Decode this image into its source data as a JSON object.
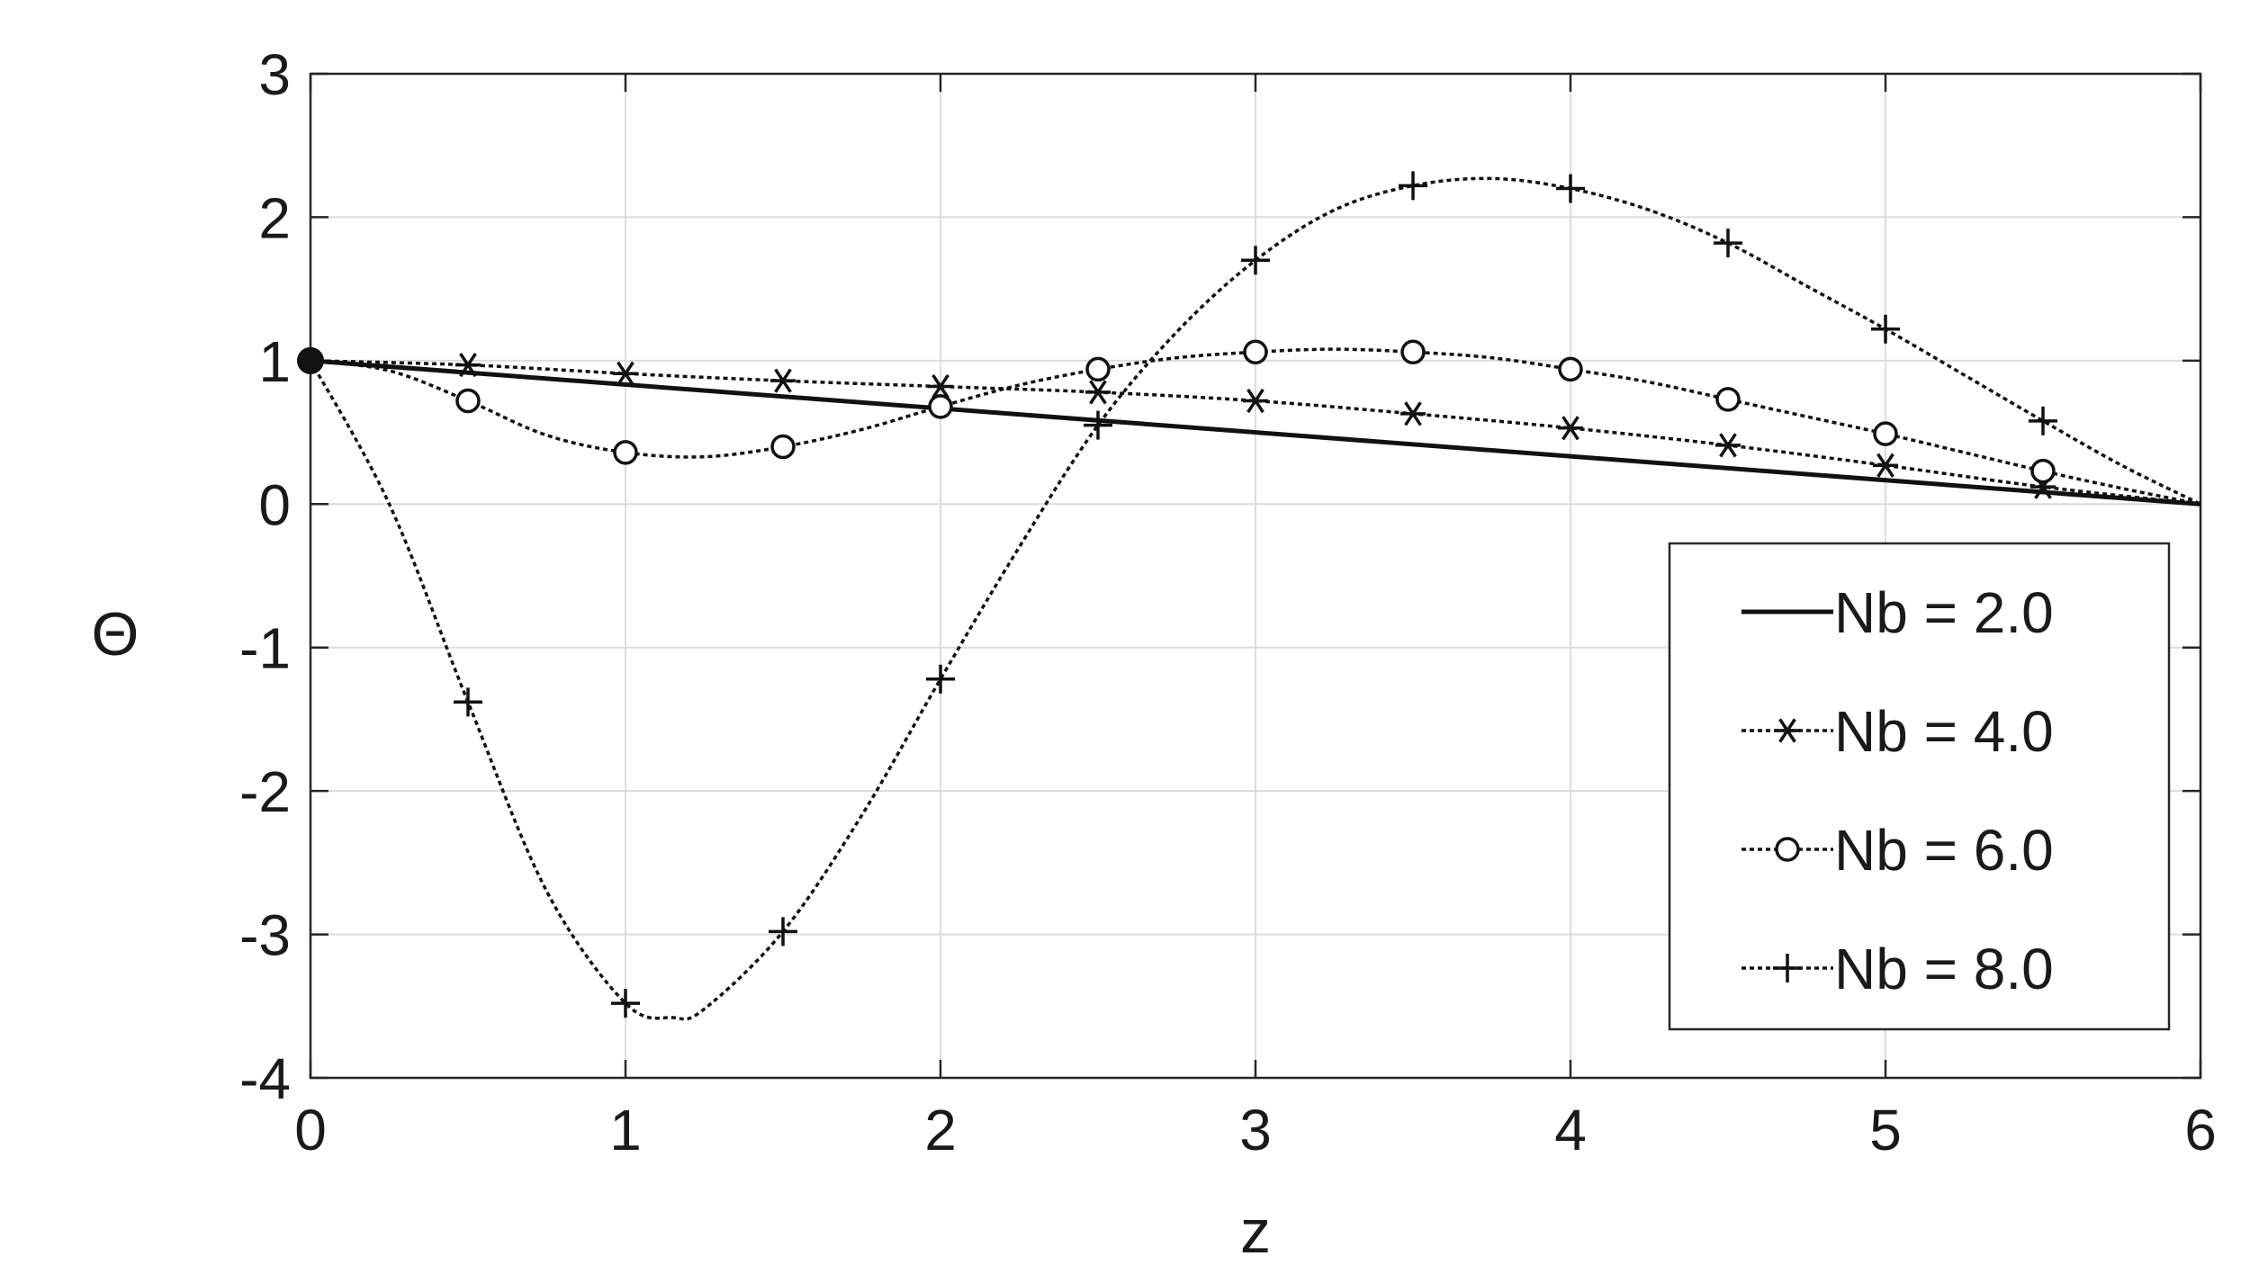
{
  "chart_data": {
    "type": "line",
    "title": "",
    "xlabel": "z",
    "ylabel": "Θ",
    "xlim": [
      0,
      6
    ],
    "ylim": [
      -4,
      3
    ],
    "xticks": [
      "0",
      "1",
      "2",
      "3",
      "4",
      "5",
      "6"
    ],
    "yticks": [
      "-4",
      "-3",
      "-2",
      "-1",
      "0",
      "1",
      "2",
      "3"
    ],
    "grid": true,
    "legend_position": "lower-right",
    "series": [
      {
        "name": "Nb = 2.0",
        "marker": "none",
        "style": "solid",
        "x": [
          0,
          6
        ],
        "y": [
          1,
          0
        ]
      },
      {
        "name": "Nb = 4.0",
        "marker": "asterisk",
        "style": "dotted",
        "x": [
          0,
          0.5,
          1.0,
          1.5,
          2.0,
          2.5,
          3.0,
          3.5,
          4.0,
          4.5,
          5.0,
          5.5,
          6.0
        ],
        "y": [
          1.0,
          0.97,
          0.91,
          0.86,
          0.82,
          0.78,
          0.72,
          0.63,
          0.53,
          0.41,
          0.27,
          0.12,
          0.0
        ]
      },
      {
        "name": "Nb = 6.0",
        "marker": "circle",
        "style": "dotted",
        "x": [
          0,
          0.25,
          0.5,
          0.75,
          1.0,
          1.25,
          1.5,
          1.75,
          2.0,
          2.25,
          2.5,
          2.75,
          3.0,
          3.25,
          3.5,
          3.75,
          4.0,
          4.25,
          4.5,
          4.75,
          5.0,
          5.25,
          5.5,
          5.75,
          6.0
        ],
        "y": [
          1.0,
          0.93,
          0.72,
          0.48,
          0.36,
          0.33,
          0.4,
          0.52,
          0.68,
          0.83,
          0.94,
          1.02,
          1.06,
          1.08,
          1.06,
          1.02,
          0.94,
          0.85,
          0.73,
          0.61,
          0.49,
          0.36,
          0.23,
          0.11,
          0.0
        ],
        "marker_x": [
          0.5,
          1.0,
          1.5,
          2.0,
          2.5,
          3.0,
          3.5,
          4.0,
          4.5,
          5.0,
          5.5
        ]
      },
      {
        "name": "Nb = 8.0",
        "marker": "plus",
        "style": "dotted",
        "x": [
          0,
          0.25,
          0.5,
          0.75,
          1.0,
          1.15,
          1.25,
          1.5,
          1.75,
          2.0,
          2.25,
          2.5,
          2.75,
          3.0,
          3.25,
          3.5,
          3.75,
          4.0,
          4.25,
          4.5,
          4.75,
          5.0,
          5.25,
          5.5,
          5.75,
          6.0
        ],
        "y": [
          1.0,
          0.0,
          -1.38,
          -2.7,
          -3.48,
          -3.58,
          -3.52,
          -2.98,
          -2.17,
          -1.22,
          -0.3,
          0.55,
          1.2,
          1.7,
          2.05,
          2.22,
          2.27,
          2.2,
          2.05,
          1.82,
          1.52,
          1.22,
          0.9,
          0.58,
          0.27,
          0.0
        ],
        "marker_x": [
          0.5,
          1.0,
          1.5,
          2.0,
          2.5,
          3.0,
          3.5,
          4.0,
          4.5,
          5.0,
          5.5
        ]
      }
    ]
  }
}
